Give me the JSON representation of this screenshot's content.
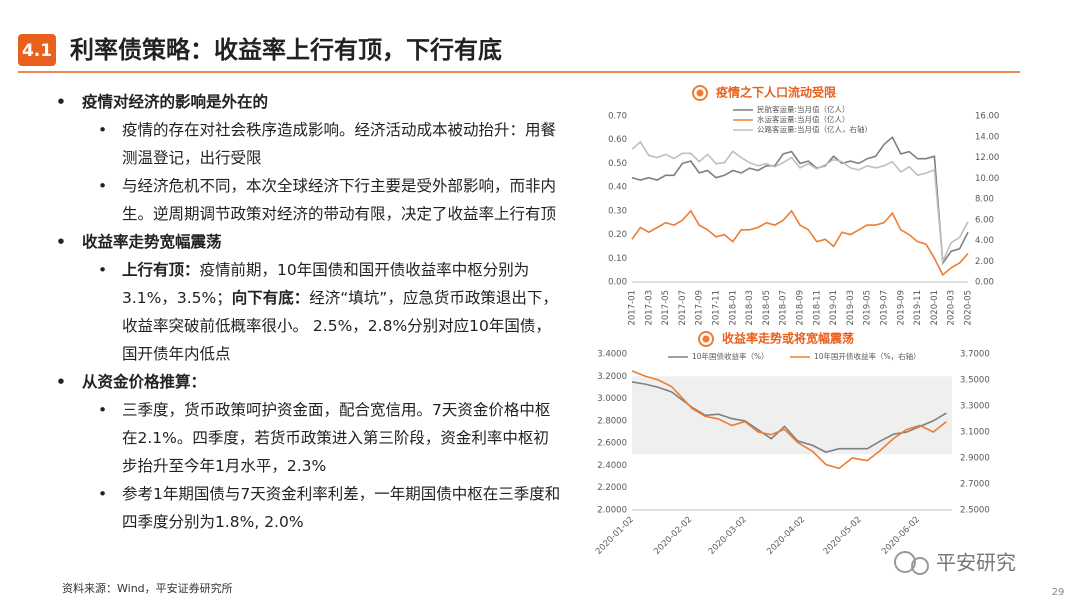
{
  "header": {
    "badge": "4.1",
    "title": "利率债策略：收益率上行有顶，下行有底"
  },
  "bullets": [
    {
      "text": "疫情对经济的影响是外在的",
      "sub": [
        "疫情的存在对社会秩序造成影响。经济活动成本被动抬升：用餐测温登记，出行受限",
        "与经济危机不同，本次全球经济下行主要是受外部影响，而非内生。逆周期调节政策对经济的带动有限，决定了收益率上行有顶"
      ]
    },
    {
      "text": "收益率走势宽幅震荡",
      "sub": [
        [
          {
            "text": "上行有顶：",
            "bold": true
          },
          "疫情前期，10年国债和国开债收益率中枢分别为3.1%，3.5%；",
          {
            "text": "向下有底：",
            "bold": true
          },
          "经济“填坑”，应急货币政策退出下，收益率突破前低概率很小。 2.5%，2.8%分别对应10年国债，国开债年内低点"
        ]
      ]
    },
    {
      "text": "从资金价格推算：",
      "sub": [
        "三季度，货币政策呵护资金面，配合宽信用。7天资金价格中枢在2.1%。四季度，若货币政策进入第三阶段，资金利率中枢初步抬升至今年1月水平，2.3%",
        "参考1年期国债与7天资金利率利差，一年期国债中枢在三季度和四季度分别为1.8%, 2.0%"
      ]
    }
  ],
  "source": "资料来源：Wind，平安证券研究所",
  "watermark": "平安研究",
  "page_number": "29",
  "chart_data": [
    {
      "type": "line",
      "title": "疫情之下人口流动受限",
      "categories": [
        "2017-01",
        null,
        "2017-03",
        null,
        "2017-05",
        null,
        "2017-07",
        null,
        "2017-09",
        null,
        "2017-11",
        null,
        "2018-01",
        null,
        "2018-03",
        null,
        "2018-05",
        null,
        "2018-07",
        null,
        "2018-09",
        null,
        "2018-11",
        null,
        "2019-01",
        null,
        "2019-03",
        null,
        "2019-05",
        null,
        "2019-07",
        null,
        "2019-09",
        null,
        "2019-11",
        null,
        "2020-01",
        null,
        "2020-03",
        null,
        "2020-05"
      ],
      "series": [
        {
          "name": "民航客运量:当月值（亿人）",
          "color": "#7f7f7f",
          "values": [
            0.44,
            0.43,
            0.44,
            0.43,
            0.45,
            0.45,
            0.5,
            0.51,
            0.46,
            0.47,
            0.44,
            0.45,
            0.47,
            0.46,
            0.48,
            0.47,
            0.49,
            0.49,
            0.54,
            0.55,
            0.5,
            0.51,
            0.48,
            0.49,
            0.53,
            0.5,
            0.51,
            0.5,
            0.52,
            0.53,
            0.58,
            0.61,
            0.54,
            0.55,
            0.52,
            0.52,
            0.53,
            0.08,
            0.13,
            0.14,
            0.21
          ]
        },
        {
          "name": "水运客运量:当月值（亿人）",
          "color": "#ed7d31",
          "values": [
            0.18,
            0.23,
            0.21,
            0.23,
            0.25,
            0.24,
            0.26,
            0.3,
            0.24,
            0.22,
            0.19,
            0.2,
            0.17,
            0.22,
            0.22,
            0.23,
            0.25,
            0.24,
            0.26,
            0.3,
            0.24,
            0.22,
            0.17,
            0.18,
            0.15,
            0.21,
            0.2,
            0.22,
            0.24,
            0.24,
            0.25,
            0.29,
            0.22,
            0.2,
            0.17,
            0.16,
            0.1,
            0.03,
            0.06,
            0.08,
            0.12
          ]
        },
        {
          "name": "公路客运量:当月值（亿人，右轴）",
          "color": "#bfbfbf",
          "axis": "y2",
          "values": [
            12.8,
            13.5,
            12.2,
            12.0,
            12.3,
            11.9,
            12.4,
            12.4,
            11.6,
            12.3,
            11.4,
            11.5,
            12.6,
            12.0,
            11.5,
            11.2,
            11.4,
            11.1,
            11.5,
            12.0,
            11.0,
            11.4,
            10.9,
            11.3,
            11.8,
            11.6,
            11.0,
            10.8,
            11.2,
            11.0,
            11.2,
            11.6,
            10.6,
            11.1,
            10.3,
            10.5,
            10.8,
            2.0,
            3.8,
            4.3,
            5.8
          ]
        }
      ],
      "ylim": [
        0,
        0.7
      ],
      "yticks": [
        {
          "value": 0,
          "label": "0.00"
        },
        {
          "value": 0.1,
          "label": "0.10"
        },
        {
          "value": 0.2,
          "label": "0.20"
        },
        {
          "value": 0.3,
          "label": "0.30"
        },
        {
          "value": 0.4,
          "label": "0.40"
        },
        {
          "value": 0.5,
          "label": "0.50"
        },
        {
          "value": 0.6,
          "label": "0.60"
        },
        {
          "value": 0.7,
          "label": "0.70"
        }
      ],
      "y2lim": [
        0,
        16
      ],
      "y2ticks": [
        {
          "value": 0,
          "label": "0.00"
        },
        {
          "value": 2,
          "label": "2.00"
        },
        {
          "value": 4,
          "label": "4.00"
        },
        {
          "value": 6,
          "label": "6.00"
        },
        {
          "value": 8,
          "label": "8.00"
        },
        {
          "value": 10,
          "label": "10.00"
        },
        {
          "value": 12,
          "label": "12.00"
        },
        {
          "value": 14,
          "label": "14.00"
        },
        {
          "value": 16,
          "label": "16.00"
        }
      ]
    },
    {
      "type": "line",
      "title": "收益率走势或将宽幅震荡",
      "x": [
        "2020-01-02",
        "2020-01-09",
        "2020-01-16",
        "2020-01-23",
        "2020-02-03",
        "2020-02-10",
        "2020-02-17",
        "2020-02-24",
        "2020-03-02",
        "2020-03-09",
        "2020-03-16",
        "2020-03-23",
        "2020-03-30",
        "2020-04-07",
        "2020-04-14",
        "2020-04-21",
        "2020-04-28",
        "2020-05-06",
        "2020-05-13",
        "2020-05-20",
        "2020-05-27",
        "2020-06-03",
        "2020-06-10",
        "2020-06-17"
      ],
      "series": [
        {
          "name": "10年国债收益率（%）",
          "color": "#808080",
          "values": [
            3.15,
            3.13,
            3.1,
            3.06,
            2.92,
            2.85,
            2.86,
            2.82,
            2.8,
            2.72,
            2.64,
            2.75,
            2.62,
            2.58,
            2.52,
            2.55,
            2.55,
            2.55,
            2.62,
            2.68,
            2.7,
            2.75,
            2.8,
            2.87
          ]
        },
        {
          "name": "10年国开债收益率（%，右轴）",
          "color": "#ed7d31",
          "axis": "y2",
          "values": [
            3.57,
            3.53,
            3.5,
            3.45,
            3.28,
            3.22,
            3.2,
            3.15,
            3.18,
            3.1,
            3.08,
            3.12,
            3.02,
            2.95,
            2.85,
            2.82,
            2.9,
            2.88,
            2.96,
            3.05,
            3.12,
            3.15,
            3.1,
            3.18
          ]
        }
      ],
      "xlim": [
        "2020-01-02",
        "2020-06-20"
      ],
      "xticks": [
        "2020-01-02",
        "2020-02-02",
        "2020-03-02",
        "2020-04-02",
        "2020-05-02",
        "2020-06-02"
      ],
      "shaded_range": [
        2.5,
        3.2
      ],
      "ylim": [
        2.0,
        3.4
      ],
      "yticks": [
        {
          "value": 2.0,
          "label": "2.0000"
        },
        {
          "value": 2.2,
          "label": "2.2000"
        },
        {
          "value": 2.4,
          "label": "2.4000"
        },
        {
          "value": 2.6,
          "label": "2.6000"
        },
        {
          "value": 2.8,
          "label": "2.8000"
        },
        {
          "value": 3.0,
          "label": "3.0000"
        },
        {
          "value": 3.2,
          "label": "3.2000"
        },
        {
          "value": 3.4,
          "label": "3.4000"
        }
      ],
      "y2lim": [
        2.5,
        3.7
      ],
      "y2ticks": [
        {
          "value": 2.5,
          "label": "2.5000"
        },
        {
          "value": 2.7,
          "label": "2.7000"
        },
        {
          "value": 2.9,
          "label": "2.9000"
        },
        {
          "value": 3.1,
          "label": "3.1000"
        },
        {
          "value": 3.3,
          "label": "3.3000"
        },
        {
          "value": 3.5,
          "label": "3.5000"
        },
        {
          "value": 3.7,
          "label": "3.7000"
        }
      ]
    }
  ]
}
